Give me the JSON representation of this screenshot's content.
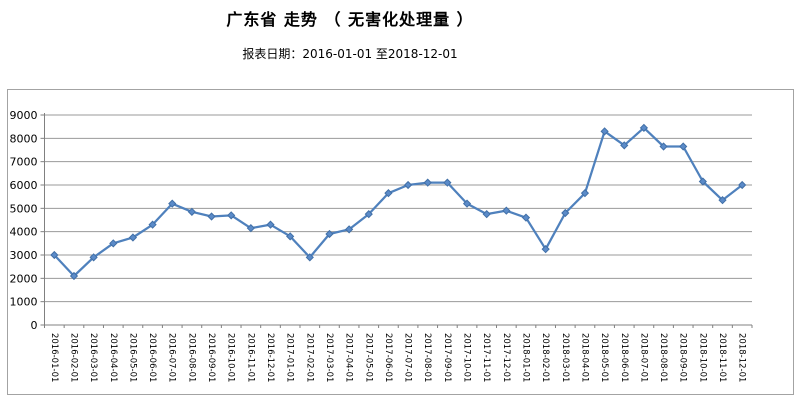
{
  "header": {
    "title": "广东省 走势 （ 无害化处理量 ）",
    "subtitle": "报表日期：2016-01-01 至2018-12-01"
  },
  "chart_data": {
    "type": "line",
    "title": "广东省 走势 （ 无害化处理量 ）",
    "series_name": "无害化处理量",
    "x": [
      "2016-01-01",
      "2016-02-01",
      "2016-03-01",
      "2016-04-01",
      "2016-05-01",
      "2016-06-01",
      "2016-07-01",
      "2016-08-01",
      "2016-09-01",
      "2016-10-01",
      "2016-11-01",
      "2016-12-01",
      "2017-01-01",
      "2017-02-01",
      "2017-03-01",
      "2017-04-01",
      "2017-05-01",
      "2017-06-01",
      "2017-07-01",
      "2017-08-01",
      "2017-09-01",
      "2017-10-01",
      "2017-11-01",
      "2017-12-01",
      "2018-01-01",
      "2018-02-01",
      "2018-03-01",
      "2018-04-01",
      "2018-05-01",
      "2018-06-01",
      "2018-07-01",
      "2018-08-01",
      "2018-09-01",
      "2018-10-01",
      "2018-11-01",
      "2018-12-01"
    ],
    "values": [
      3000,
      2100,
      2900,
      3500,
      3750,
      4300,
      5200,
      4850,
      4650,
      4700,
      4150,
      4300,
      3800,
      2900,
      3900,
      4100,
      4750,
      5650,
      6000,
      6100,
      6100,
      5200,
      4750,
      4900,
      4600,
      3250,
      4800,
      5650,
      8300,
      7700,
      8450,
      7650,
      7650,
      6150,
      5350,
      6000
    ],
    "ylim": [
      0,
      9000
    ],
    "ytick_interval": 1000,
    "grid": true,
    "legend": "none",
    "style": {
      "line_color": "#4F81BD",
      "marker": "diamond",
      "marker_fill": "#5B8BC9",
      "marker_stroke": "#416FA6",
      "grid_color": "#999999",
      "axis_color": "#808080",
      "frame_color": "#A3A3A3",
      "label_color": "#000000"
    }
  }
}
